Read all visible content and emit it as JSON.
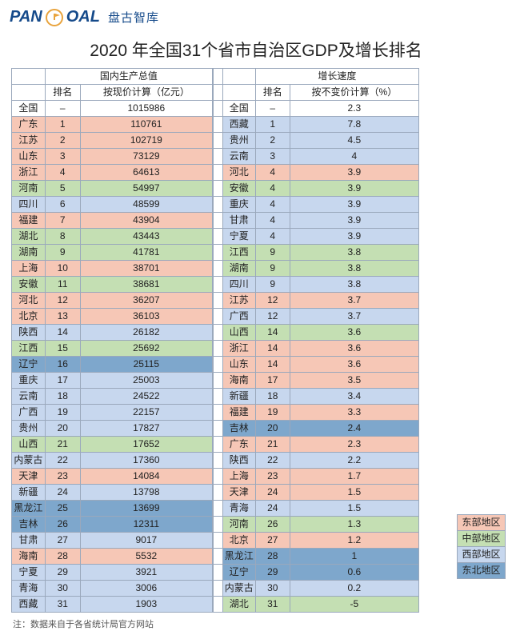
{
  "logo": {
    "brand": "PAN",
    "brand2": "OAL",
    "cn": "盘古智库"
  },
  "title": "2020 年全国31个省市自治区GDP及增长排名",
  "headers": {
    "gdp_group": "国内生产总值",
    "growth_group": "增长速度",
    "rank": "排名",
    "gdp_val": "按现价计算（亿元）",
    "growth_val": "按不变价计算（%）"
  },
  "legend": [
    {
      "label": "东部地区",
      "color": "#f6c7b6"
    },
    {
      "label": "中部地区",
      "color": "#c4dfb3"
    },
    {
      "label": "西部地区",
      "color": "#c7d7ee"
    },
    {
      "label": "东北地区",
      "color": "#7ea7cc"
    }
  ],
  "footnote": "注：数据来自于各省统计局官方网站",
  "region_colors": {
    "east": "#f6c7b6",
    "central": "#c4dfb3",
    "west": "#c7d7ee",
    "northeast": "#7ea7cc",
    "none": "#ffffff"
  },
  "gdp_rows": [
    {
      "name": "全国",
      "rank": "–",
      "val": "1015986",
      "region": "none"
    },
    {
      "name": "广东",
      "rank": "1",
      "val": "110761",
      "region": "east"
    },
    {
      "name": "江苏",
      "rank": "2",
      "val": "102719",
      "region": "east"
    },
    {
      "name": "山东",
      "rank": "3",
      "val": "73129",
      "region": "east"
    },
    {
      "name": "浙江",
      "rank": "4",
      "val": "64613",
      "region": "east"
    },
    {
      "name": "河南",
      "rank": "5",
      "val": "54997",
      "region": "central"
    },
    {
      "name": "四川",
      "rank": "6",
      "val": "48599",
      "region": "west"
    },
    {
      "name": "福建",
      "rank": "7",
      "val": "43904",
      "region": "east"
    },
    {
      "name": "湖北",
      "rank": "8",
      "val": "43443",
      "region": "central"
    },
    {
      "name": "湖南",
      "rank": "9",
      "val": "41781",
      "region": "central"
    },
    {
      "name": "上海",
      "rank": "10",
      "val": "38701",
      "region": "east"
    },
    {
      "name": "安徽",
      "rank": "11",
      "val": "38681",
      "region": "central"
    },
    {
      "name": "河北",
      "rank": "12",
      "val": "36207",
      "region": "east"
    },
    {
      "name": "北京",
      "rank": "13",
      "val": "36103",
      "region": "east"
    },
    {
      "name": "陕西",
      "rank": "14",
      "val": "26182",
      "region": "west"
    },
    {
      "name": "江西",
      "rank": "15",
      "val": "25692",
      "region": "central"
    },
    {
      "name": "辽宁",
      "rank": "16",
      "val": "25115",
      "region": "northeast"
    },
    {
      "name": "重庆",
      "rank": "17",
      "val": "25003",
      "region": "west"
    },
    {
      "name": "云南",
      "rank": "18",
      "val": "24522",
      "region": "west"
    },
    {
      "name": "广西",
      "rank": "19",
      "val": "22157",
      "region": "west"
    },
    {
      "name": "贵州",
      "rank": "20",
      "val": "17827",
      "region": "west"
    },
    {
      "name": "山西",
      "rank": "21",
      "val": "17652",
      "region": "central"
    },
    {
      "name": "内蒙古",
      "rank": "22",
      "val": "17360",
      "region": "west"
    },
    {
      "name": "天津",
      "rank": "23",
      "val": "14084",
      "region": "east"
    },
    {
      "name": "新疆",
      "rank": "24",
      "val": "13798",
      "region": "west"
    },
    {
      "name": "黑龙江",
      "rank": "25",
      "val": "13699",
      "region": "northeast"
    },
    {
      "name": "吉林",
      "rank": "26",
      "val": "12311",
      "region": "northeast"
    },
    {
      "name": "甘肃",
      "rank": "27",
      "val": "9017",
      "region": "west"
    },
    {
      "name": "海南",
      "rank": "28",
      "val": "5532",
      "region": "east"
    },
    {
      "name": "宁夏",
      "rank": "29",
      "val": "3921",
      "region": "west"
    },
    {
      "name": "青海",
      "rank": "30",
      "val": "3006",
      "region": "west"
    },
    {
      "name": "西藏",
      "rank": "31",
      "val": "1903",
      "region": "west"
    }
  ],
  "growth_rows": [
    {
      "name": "全国",
      "rank": "–",
      "val": "2.3",
      "region": "none"
    },
    {
      "name": "西藏",
      "rank": "1",
      "val": "7.8",
      "region": "west"
    },
    {
      "name": "贵州",
      "rank": "2",
      "val": "4.5",
      "region": "west"
    },
    {
      "name": "云南",
      "rank": "3",
      "val": "4",
      "region": "west"
    },
    {
      "name": "河北",
      "rank": "4",
      "val": "3.9",
      "region": "east"
    },
    {
      "name": "安徽",
      "rank": "4",
      "val": "3.9",
      "region": "central"
    },
    {
      "name": "重庆",
      "rank": "4",
      "val": "3.9",
      "region": "west"
    },
    {
      "name": "甘肃",
      "rank": "4",
      "val": "3.9",
      "region": "west"
    },
    {
      "name": "宁夏",
      "rank": "4",
      "val": "3.9",
      "region": "west"
    },
    {
      "name": "江西",
      "rank": "9",
      "val": "3.8",
      "region": "central"
    },
    {
      "name": "湖南",
      "rank": "9",
      "val": "3.8",
      "region": "central"
    },
    {
      "name": "四川",
      "rank": "9",
      "val": "3.8",
      "region": "west"
    },
    {
      "name": "江苏",
      "rank": "12",
      "val": "3.7",
      "region": "east"
    },
    {
      "name": "广西",
      "rank": "12",
      "val": "3.7",
      "region": "west"
    },
    {
      "name": "山西",
      "rank": "14",
      "val": "3.6",
      "region": "central"
    },
    {
      "name": "浙江",
      "rank": "14",
      "val": "3.6",
      "region": "east"
    },
    {
      "name": "山东",
      "rank": "14",
      "val": "3.6",
      "region": "east"
    },
    {
      "name": "海南",
      "rank": "17",
      "val": "3.5",
      "region": "east"
    },
    {
      "name": "新疆",
      "rank": "18",
      "val": "3.4",
      "region": "west"
    },
    {
      "name": "福建",
      "rank": "19",
      "val": "3.3",
      "region": "east"
    },
    {
      "name": "吉林",
      "rank": "20",
      "val": "2.4",
      "region": "northeast"
    },
    {
      "name": "广东",
      "rank": "21",
      "val": "2.3",
      "region": "east"
    },
    {
      "name": "陕西",
      "rank": "22",
      "val": "2.2",
      "region": "west"
    },
    {
      "name": "上海",
      "rank": "23",
      "val": "1.7",
      "region": "east"
    },
    {
      "name": "天津",
      "rank": "24",
      "val": "1.5",
      "region": "east"
    },
    {
      "name": "青海",
      "rank": "24",
      "val": "1.5",
      "region": "west"
    },
    {
      "name": "河南",
      "rank": "26",
      "val": "1.3",
      "region": "central"
    },
    {
      "name": "北京",
      "rank": "27",
      "val": "1.2",
      "region": "east"
    },
    {
      "name": "黑龙江",
      "rank": "28",
      "val": "1",
      "region": "northeast"
    },
    {
      "name": "辽宁",
      "rank": "29",
      "val": "0.6",
      "region": "northeast"
    },
    {
      "name": "内蒙古",
      "rank": "30",
      "val": "0.2",
      "region": "west"
    },
    {
      "name": "湖北",
      "rank": "31",
      "val": "-5",
      "region": "central"
    }
  ]
}
